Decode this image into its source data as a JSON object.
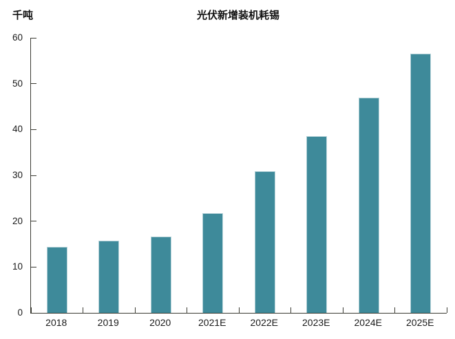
{
  "chart_data": {
    "type": "bar",
    "title": "光伏新增装机耗锡",
    "unit_label": "千吨",
    "categories": [
      "2018",
      "2019",
      "2020",
      "2021E",
      "2022E",
      "2023E",
      "2024E",
      "2025E"
    ],
    "values": [
      14.4,
      15.8,
      16.6,
      21.8,
      30.9,
      38.6,
      47.0,
      56.5
    ],
    "ylim": [
      0,
      60
    ],
    "yticks": [
      0,
      10,
      20,
      30,
      40,
      50,
      60
    ],
    "xlabel": "",
    "ylabel": "千吨",
    "grid": false,
    "legend_position": "none",
    "bar_color": "#3E8A9A",
    "bar_edge_color": "#b7d3d9",
    "axis_color": "#3a3a32",
    "text_color": "#1a1a1a",
    "background_color": "#ffffff"
  }
}
